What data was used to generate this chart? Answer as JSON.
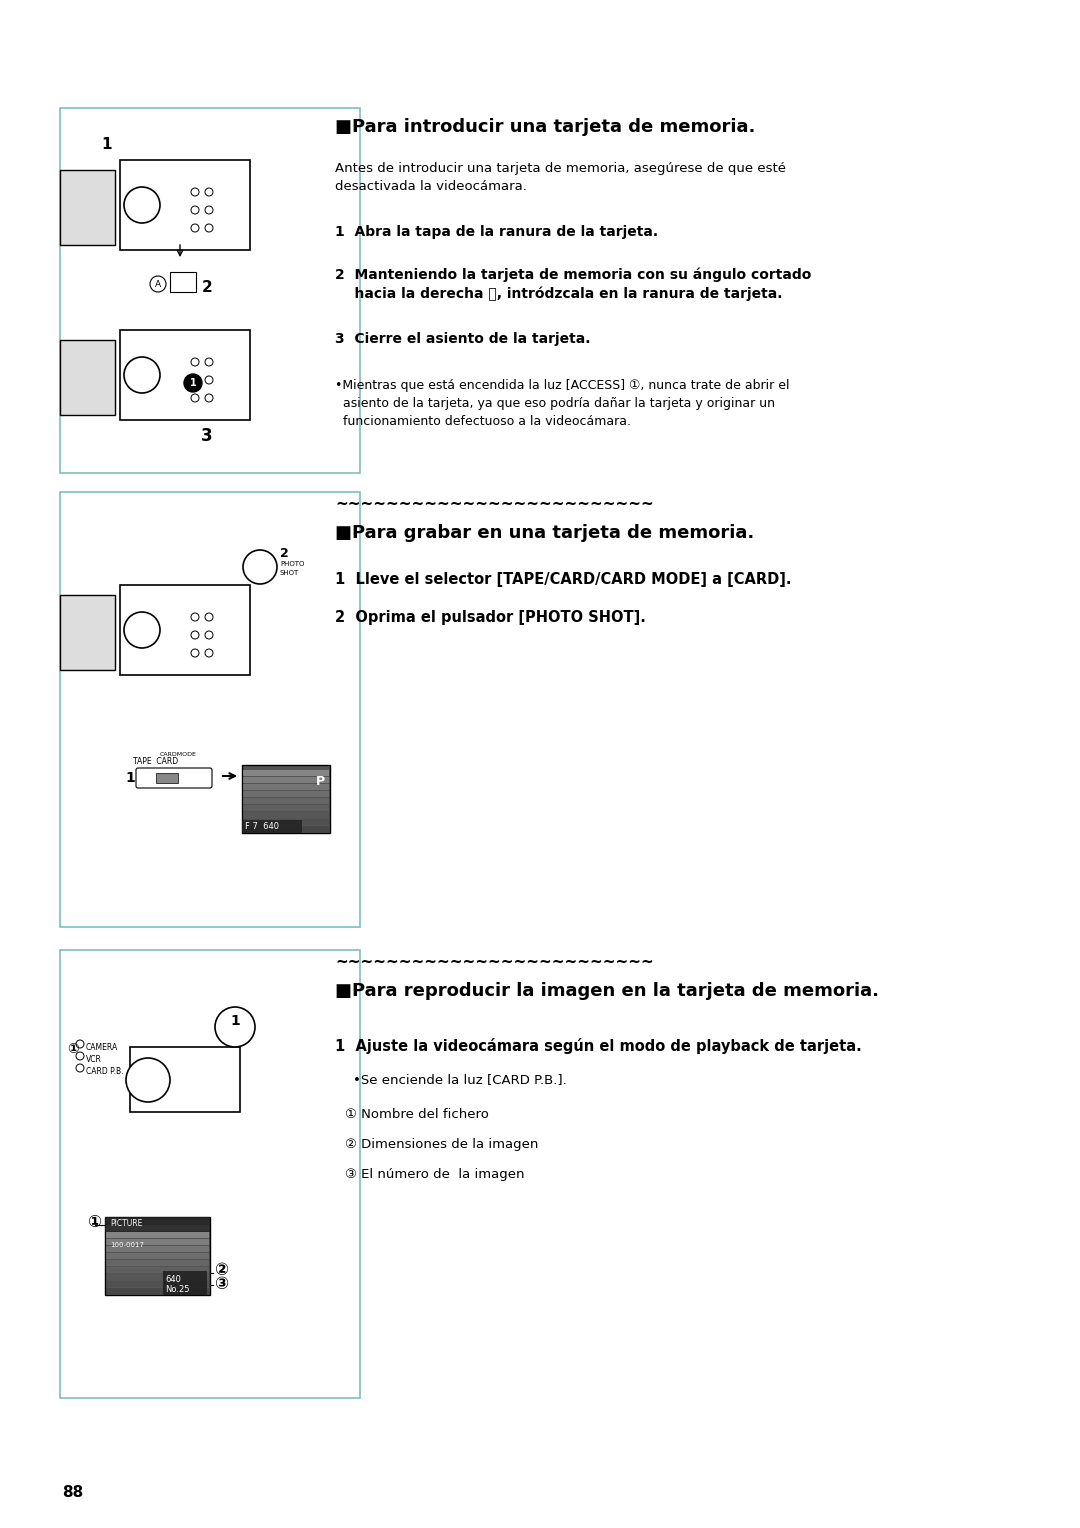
{
  "page_bg": "#ffffff",
  "border_color": "#7fbfbf",
  "text_color": "#000000",
  "page_number": "88",
  "section1": {
    "title": "■Para introducir una tarjeta de memoria.",
    "intro": "Antes de introducir una tarjeta de memoria, asegúrese de que esté\ndesactivada la videocámara.",
    "steps": [
      "1  Abra la tapa de la ranura de la tarjeta.",
      "2  Manteniendo la tarjeta de memoria con su ángulo cortado\n    hacia la derecha Ⓐ, intródzcala en la ranura de tarjeta.",
      "3  Cierre el asiento de la tarjeta."
    ],
    "note": "•Mientras que está encendida la luz [ACCESS] ①, nunca trate de abrir el\n  asiento de la tarjeta, ya que eso podría dañar la tarjeta y originar un\n  funcionamiento defectuoso a la videocámara."
  },
  "section2": {
    "tilde_line": "~~~~~~~~~~~~~~~~~~~~~~~~~",
    "title": "■Para grabar en una tarjeta de memoria.",
    "steps": [
      "1  Lleve el selector [TAPE/CARD/CARD MODE] a [CARD].",
      "2  Oprima el pulsador [PHOTO SHOT]."
    ]
  },
  "section3": {
    "tilde_line": "~~~~~~~~~~~~~~~~~~~~~~~~~",
    "title": "■Para reproducir la imagen en la tarjeta de memoria.",
    "steps": [
      "1  Ajuste la videocámara según el modo de playback de tarjeta."
    ],
    "note": "•Se enciende la luz [CARD P.B.].",
    "items": [
      "① Nombre del fichero",
      "② Dimensiones de la imagen",
      "③ El número de  la imagen"
    ]
  }
}
